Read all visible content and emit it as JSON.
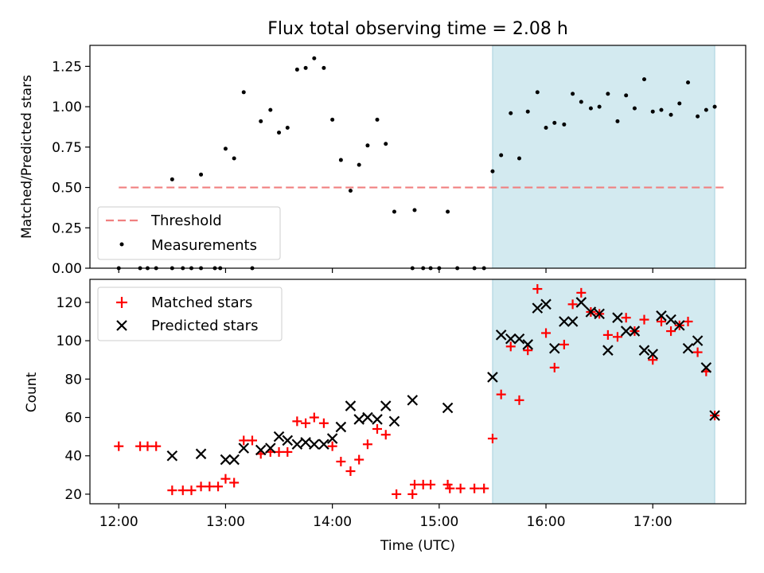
{
  "chart_data": [
    {
      "type": "scatter",
      "title": "Flux total observing time = 2.08 h",
      "xlabel": "",
      "ylabel": "Matched/Predicted stars",
      "ylim": [
        0,
        1.38
      ],
      "yticks": [
        "0.00",
        "0.25",
        "0.50",
        "0.75",
        "1.00",
        "1.25"
      ],
      "threshold": {
        "name": "Threshold",
        "value": 0.5,
        "x_range": [
          0,
          5.67
        ],
        "color": "#f08080"
      },
      "highlight": {
        "x_range": [
          3.5,
          5.58
        ],
        "color": "#d3eaf0"
      },
      "legend_position": "lower-left",
      "series": [
        {
          "name": "Measurements",
          "color": "#000000",
          "points": [
            [
              0,
              0
            ],
            [
              0.2,
              0
            ],
            [
              0.27,
              0
            ],
            [
              0.35,
              0
            ],
            [
              0.5,
              0.55
            ],
            [
              0.5,
              0
            ],
            [
              0.6,
              0
            ],
            [
              0.68,
              0
            ],
            [
              0.77,
              0.58
            ],
            [
              0.77,
              0
            ],
            [
              0.9,
              0
            ],
            [
              0.95,
              0
            ],
            [
              1.0,
              0.74
            ],
            [
              1.08,
              0.68
            ],
            [
              1.17,
              1.09
            ],
            [
              1.25,
              0
            ],
            [
              1.33,
              0.91
            ],
            [
              1.42,
              0.98
            ],
            [
              1.5,
              0.84
            ],
            [
              1.58,
              0.87
            ],
            [
              1.67,
              1.23
            ],
            [
              1.75,
              1.24
            ],
            [
              1.83,
              1.3
            ],
            [
              1.92,
              1.24
            ],
            [
              2.0,
              0.92
            ],
            [
              2.08,
              0.67
            ],
            [
              2.17,
              0.48
            ],
            [
              2.25,
              0.64
            ],
            [
              2.33,
              0.76
            ],
            [
              2.42,
              0.92
            ],
            [
              2.5,
              0.77
            ],
            [
              2.58,
              0.35
            ],
            [
              2.75,
              0
            ],
            [
              2.77,
              0.36
            ],
            [
              2.85,
              0
            ],
            [
              2.92,
              0
            ],
            [
              3.0,
              0
            ],
            [
              3.08,
              0.35
            ],
            [
              3.17,
              0
            ],
            [
              3.33,
              0
            ],
            [
              3.42,
              0
            ],
            [
              3.5,
              0.6
            ],
            [
              3.58,
              0.7
            ],
            [
              3.67,
              0.96
            ],
            [
              3.75,
              0.68
            ],
            [
              3.83,
              0.97
            ],
            [
              3.92,
              1.09
            ],
            [
              4.0,
              0.87
            ],
            [
              4.08,
              0.9
            ],
            [
              4.17,
              0.89
            ],
            [
              4.25,
              1.08
            ],
            [
              4.33,
              1.03
            ],
            [
              4.42,
              0.99
            ],
            [
              4.5,
              1.0
            ],
            [
              4.58,
              1.08
            ],
            [
              4.67,
              0.91
            ],
            [
              4.75,
              1.07
            ],
            [
              4.83,
              0.99
            ],
            [
              4.92,
              1.17
            ],
            [
              5.0,
              0.97
            ],
            [
              5.08,
              0.98
            ],
            [
              5.17,
              0.95
            ],
            [
              5.25,
              1.02
            ],
            [
              5.33,
              1.15
            ],
            [
              5.42,
              0.94
            ],
            [
              5.5,
              0.98
            ],
            [
              5.58,
              1.0
            ]
          ]
        }
      ]
    },
    {
      "type": "scatter",
      "title": "",
      "xlabel": "Time (UTC)",
      "ylabel": "Count",
      "ylim": [
        15,
        132
      ],
      "xlim": [
        -0.27,
        5.87
      ],
      "yticks": [
        "20",
        "40",
        "60",
        "80",
        "100",
        "120"
      ],
      "xticks": [
        "12:00",
        "13:00",
        "14:00",
        "15:00",
        "16:00",
        "17:00"
      ],
      "highlight": {
        "x_range": [
          3.5,
          5.58
        ],
        "color": "#d3eaf0"
      },
      "legend_position": "upper-left",
      "series": [
        {
          "name": "Matched stars",
          "color": "#ff0000",
          "marker": "plus",
          "points": [
            [
              0,
              45
            ],
            [
              0.2,
              45
            ],
            [
              0.27,
              45
            ],
            [
              0.35,
              45
            ],
            [
              0.5,
              22
            ],
            [
              0.6,
              22
            ],
            [
              0.68,
              22
            ],
            [
              0.77,
              24
            ],
            [
              0.85,
              24
            ],
            [
              0.93,
              24
            ],
            [
              1.0,
              28
            ],
            [
              1.08,
              26
            ],
            [
              1.17,
              48
            ],
            [
              1.25,
              48
            ],
            [
              1.33,
              41
            ],
            [
              1.42,
              42
            ],
            [
              1.5,
              42
            ],
            [
              1.58,
              42
            ],
            [
              1.67,
              58
            ],
            [
              1.75,
              57
            ],
            [
              1.83,
              60
            ],
            [
              1.92,
              57
            ],
            [
              2.0,
              45
            ],
            [
              2.08,
              37
            ],
            [
              2.17,
              32
            ],
            [
              2.25,
              38
            ],
            [
              2.33,
              46
            ],
            [
              2.42,
              54
            ],
            [
              2.5,
              51
            ],
            [
              2.6,
              20
            ],
            [
              2.75,
              20
            ],
            [
              2.77,
              25
            ],
            [
              2.85,
              25
            ],
            [
              2.92,
              25
            ],
            [
              3.08,
              25
            ],
            [
              3.1,
              23
            ],
            [
              3.2,
              23
            ],
            [
              3.33,
              23
            ],
            [
              3.42,
              23
            ],
            [
              3.5,
              49
            ],
            [
              3.58,
              72
            ],
            [
              3.67,
              97
            ],
            [
              3.75,
              69
            ],
            [
              3.83,
              95
            ],
            [
              3.92,
              127
            ],
            [
              4.0,
              104
            ],
            [
              4.08,
              86
            ],
            [
              4.17,
              98
            ],
            [
              4.25,
              119
            ],
            [
              4.33,
              125
            ],
            [
              4.42,
              115
            ],
            [
              4.5,
              114
            ],
            [
              4.58,
              103
            ],
            [
              4.67,
              102
            ],
            [
              4.75,
              112
            ],
            [
              4.83,
              105
            ],
            [
              4.92,
              111
            ],
            [
              5.0,
              90
            ],
            [
              5.08,
              110
            ],
            [
              5.17,
              105
            ],
            [
              5.25,
              108
            ],
            [
              5.33,
              110
            ],
            [
              5.42,
              94
            ],
            [
              5.5,
              84
            ],
            [
              5.58,
              61
            ]
          ]
        },
        {
          "name": "Predicted stars",
          "color": "#000000",
          "marker": "x",
          "points": [
            [
              0.5,
              40
            ],
            [
              0.77,
              41
            ],
            [
              1.0,
              38
            ],
            [
              1.08,
              38
            ],
            [
              1.17,
              44
            ],
            [
              1.33,
              43
            ],
            [
              1.42,
              44
            ],
            [
              1.5,
              50
            ],
            [
              1.58,
              48
            ],
            [
              1.67,
              46
            ],
            [
              1.75,
              47
            ],
            [
              1.83,
              46
            ],
            [
              1.92,
              46
            ],
            [
              2.0,
              49
            ],
            [
              2.08,
              55
            ],
            [
              2.17,
              66
            ],
            [
              2.25,
              59
            ],
            [
              2.33,
              60
            ],
            [
              2.42,
              59
            ],
            [
              2.5,
              66
            ],
            [
              2.58,
              58
            ],
            [
              2.75,
              69
            ],
            [
              3.08,
              65
            ],
            [
              3.5,
              81
            ],
            [
              3.58,
              103
            ],
            [
              3.67,
              101
            ],
            [
              3.75,
              101
            ],
            [
              3.83,
              98
            ],
            [
              3.92,
              117
            ],
            [
              4.0,
              119
            ],
            [
              4.08,
              96
            ],
            [
              4.17,
              110
            ],
            [
              4.25,
              110
            ],
            [
              4.33,
              120
            ],
            [
              4.42,
              115
            ],
            [
              4.5,
              114
            ],
            [
              4.58,
              95
            ],
            [
              4.67,
              112
            ],
            [
              4.75,
              105
            ],
            [
              4.83,
              105
            ],
            [
              4.92,
              95
            ],
            [
              5.0,
              93
            ],
            [
              5.08,
              113
            ],
            [
              5.17,
              111
            ],
            [
              5.25,
              108
            ],
            [
              5.33,
              96
            ],
            [
              5.42,
              100
            ],
            [
              5.5,
              86
            ],
            [
              5.58,
              61
            ]
          ]
        }
      ]
    }
  ]
}
